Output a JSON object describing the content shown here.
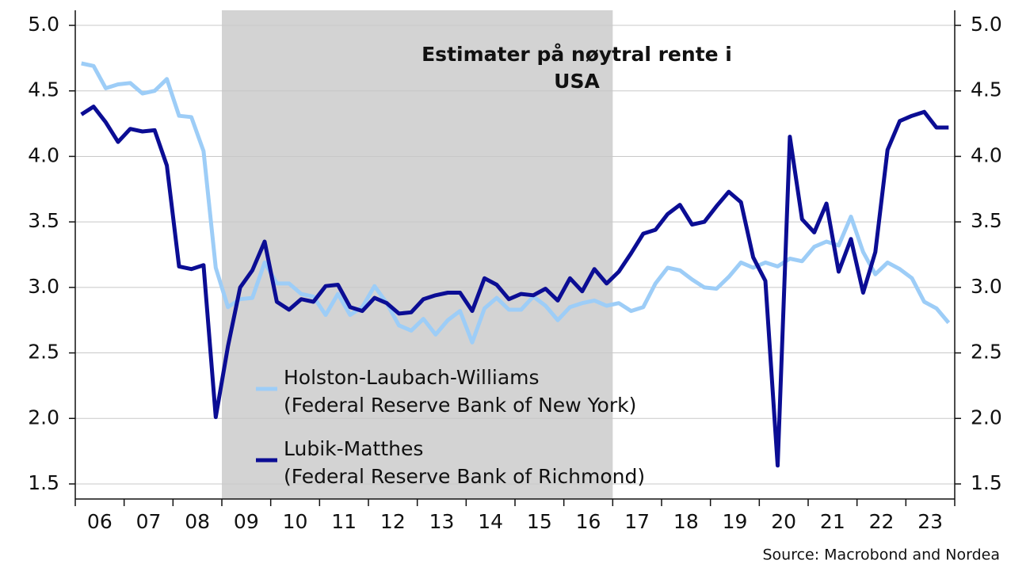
{
  "chart_data": {
    "type": "line",
    "title": "Estimater på nøytral rente i\nUSA",
    "source": "Source: Macrobond and Nordea",
    "x": [
      2006.125,
      2006.375,
      2006.625,
      2006.875,
      2007.125,
      2007.375,
      2007.625,
      2007.875,
      2008.125,
      2008.375,
      2008.625,
      2008.875,
      2009.125,
      2009.375,
      2009.625,
      2009.875,
      2010.125,
      2010.375,
      2010.625,
      2010.875,
      2011.125,
      2011.375,
      2011.625,
      2011.875,
      2012.125,
      2012.375,
      2012.625,
      2012.875,
      2013.125,
      2013.375,
      2013.625,
      2013.875,
      2014.125,
      2014.375,
      2014.625,
      2014.875,
      2015.125,
      2015.375,
      2015.625,
      2015.875,
      2016.125,
      2016.375,
      2016.625,
      2016.875,
      2017.125,
      2017.375,
      2017.625,
      2017.875,
      2018.125,
      2018.375,
      2018.625,
      2018.875,
      2019.125,
      2019.375,
      2019.625,
      2019.875,
      2020.125,
      2020.375,
      2020.625,
      2020.875,
      2021.125,
      2021.375,
      2021.625,
      2021.875,
      2022.125,
      2022.375,
      2022.625,
      2022.875,
      2023.125,
      2023.375,
      2023.625,
      2023.875
    ],
    "series": [
      {
        "name": "Holston-Laubach-Williams\n(Federal Reserve Bank of New York)",
        "color": "#9dcdf7",
        "values": [
          4.71,
          4.69,
          4.52,
          4.55,
          4.56,
          4.48,
          4.5,
          4.59,
          4.31,
          4.3,
          4.04,
          3.15,
          2.85,
          2.91,
          2.92,
          3.19,
          3.03,
          3.03,
          2.95,
          2.93,
          2.79,
          2.95,
          2.79,
          2.85,
          3.01,
          2.88,
          2.71,
          2.67,
          2.76,
          2.64,
          2.75,
          2.82,
          2.58,
          2.84,
          2.92,
          2.83,
          2.83,
          2.93,
          2.86,
          2.75,
          2.85,
          2.88,
          2.9,
          2.86,
          2.88,
          2.82,
          2.85,
          3.03,
          3.15,
          3.13,
          3.06,
          3.0,
          2.99,
          3.08,
          3.19,
          3.15,
          3.19,
          3.16,
          3.22,
          3.2,
          3.31,
          3.35,
          3.32,
          3.54,
          3.27,
          3.1,
          3.19,
          3.14,
          3.07,
          2.89,
          2.84,
          2.73
        ]
      },
      {
        "name": "Lubik-Matthes\n(Federal Reserve Bank of Richmond)",
        "color": "#0b0d94",
        "values": [
          4.32,
          4.38,
          4.26,
          4.11,
          4.21,
          4.19,
          4.2,
          3.93,
          3.16,
          3.14,
          3.17,
          2.01,
          2.55,
          3.0,
          3.13,
          3.35,
          2.89,
          2.83,
          2.91,
          2.89,
          3.01,
          3.02,
          2.85,
          2.82,
          2.92,
          2.88,
          2.8,
          2.81,
          2.91,
          2.94,
          2.96,
          2.96,
          2.82,
          3.07,
          3.02,
          2.91,
          2.95,
          2.94,
          2.99,
          2.9,
          3.07,
          2.97,
          3.14,
          3.03,
          3.12,
          3.26,
          3.41,
          3.44,
          3.56,
          3.63,
          3.48,
          3.5,
          3.62,
          3.73,
          3.65,
          3.23,
          3.05,
          1.64,
          4.15,
          3.52,
          3.42,
          3.64,
          3.12,
          3.37,
          2.96,
          3.27,
          4.05,
          4.27,
          4.31,
          4.34,
          4.22,
          4.22
        ]
      }
    ],
    "xlim": [
      2006,
      2024
    ],
    "xticks": [
      {
        "value": 2006.5,
        "label": "06"
      },
      {
        "value": 2007.5,
        "label": "07"
      },
      {
        "value": 2008.5,
        "label": "08"
      },
      {
        "value": 2009.5,
        "label": "09"
      },
      {
        "value": 2010.5,
        "label": "10"
      },
      {
        "value": 2011.5,
        "label": "11"
      },
      {
        "value": 2012.5,
        "label": "12"
      },
      {
        "value": 2013.5,
        "label": "13"
      },
      {
        "value": 2014.5,
        "label": "14"
      },
      {
        "value": 2015.5,
        "label": "15"
      },
      {
        "value": 2016.5,
        "label": "16"
      },
      {
        "value": 2017.5,
        "label": "17"
      },
      {
        "value": 2018.5,
        "label": "18"
      },
      {
        "value": 2019.5,
        "label": "19"
      },
      {
        "value": 2020.5,
        "label": "20"
      },
      {
        "value": 2021.5,
        "label": "21"
      },
      {
        "value": 2022.5,
        "label": "22"
      },
      {
        "value": 2023.5,
        "label": "23"
      }
    ],
    "xminorticks": [
      2006,
      2007,
      2008,
      2009,
      2010,
      2011,
      2012,
      2013,
      2014,
      2015,
      2016,
      2017,
      2018,
      2019,
      2020,
      2021,
      2022,
      2023,
      2024
    ],
    "shaded_span": [
      2009,
      2017
    ],
    "ylim": [
      1.385,
      5.115
    ],
    "yticks": [
      {
        "value": 1.5,
        "label": "1.5"
      },
      {
        "value": 2,
        "label": "2.0"
      },
      {
        "value": 2.5,
        "label": "2.5"
      },
      {
        "value": 3,
        "label": "3.0"
      },
      {
        "value": 3.5,
        "label": "3.5"
      },
      {
        "value": 4,
        "label": "4.0"
      },
      {
        "value": 4.5,
        "label": "4.5"
      },
      {
        "value": 5,
        "label": "5.0"
      }
    ],
    "y2lim": [
      1.385,
      5.115
    ],
    "y2ticks": [
      {
        "value": 1.5,
        "label": "1.5"
      },
      {
        "value": 2,
        "label": "2.0"
      },
      {
        "value": 2.5,
        "label": "2.5"
      },
      {
        "value": 3,
        "label": "3.0"
      },
      {
        "value": 3.5,
        "label": "3.5"
      },
      {
        "value": 4,
        "label": "4.0"
      },
      {
        "value": 4.5,
        "label": "4.5"
      },
      {
        "value": 5,
        "label": "5.0"
      }
    ],
    "grid": true
  }
}
